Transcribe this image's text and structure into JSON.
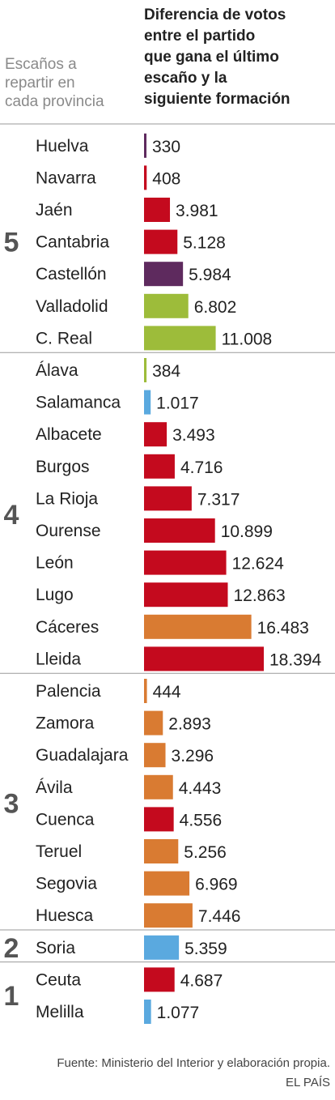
{
  "header": {
    "left_lines": [
      "Escaños a",
      "repartir en",
      "cada provincia"
    ],
    "right_lines": [
      "Diferencia de votos",
      "entre el partido",
      "que gana el último",
      "escaño y la",
      "siguiente formación"
    ]
  },
  "footer": {
    "source": "Fuente: Ministerio del Interior y elaboración propia.",
    "brand": "EL PAÍS"
  },
  "colors": {
    "red": "#c40a1e",
    "purple": "#5e2a5e",
    "green": "#9dbc3a",
    "blue": "#5aa9df",
    "orange": "#d97b32",
    "separator": "#9a9a9a",
    "group_number": "#555555"
  },
  "chart_data": {
    "type": "bar",
    "orientation": "horizontal",
    "groups": [
      {
        "seats": "5",
        "rows": [
          {
            "province": "Huelva",
            "value": 330,
            "label": "330",
            "color": "purple"
          },
          {
            "province": "Navarra",
            "value": 408,
            "label": "408",
            "color": "red"
          },
          {
            "province": "Jaén",
            "value": 3981,
            "label": "3.981",
            "color": "red"
          },
          {
            "province": "Cantabria",
            "value": 5128,
            "label": "5.128",
            "color": "red"
          },
          {
            "province": "Castellón",
            "value": 5984,
            "label": "5.984",
            "color": "purple"
          },
          {
            "province": "Valladolid",
            "value": 6802,
            "label": "6.802",
            "color": "green"
          },
          {
            "province": "C. Real",
            "value": 11008,
            "label": "11.008",
            "color": "green"
          }
        ]
      },
      {
        "seats": "4",
        "rows": [
          {
            "province": "Álava",
            "value": 384,
            "label": "384",
            "color": "green"
          },
          {
            "province": "Salamanca",
            "value": 1017,
            "label": "1.017",
            "color": "blue"
          },
          {
            "province": "Albacete",
            "value": 3493,
            "label": "3.493",
            "color": "red"
          },
          {
            "province": "Burgos",
            "value": 4716,
            "label": "4.716",
            "color": "red"
          },
          {
            "province": "La Rioja",
            "value": 7317,
            "label": "7.317",
            "color": "red"
          },
          {
            "province": "Ourense",
            "value": 10899,
            "label": "10.899",
            "color": "red"
          },
          {
            "province": "León",
            "value": 12624,
            "label": "12.624",
            "color": "red"
          },
          {
            "province": "Lugo",
            "value": 12863,
            "label": "12.863",
            "color": "red"
          },
          {
            "province": "Cáceres",
            "value": 16483,
            "label": "16.483",
            "color": "orange"
          },
          {
            "province": "Lleida",
            "value": 18394,
            "label": "18.394",
            "color": "red"
          }
        ]
      },
      {
        "seats": "3",
        "rows": [
          {
            "province": "Palencia",
            "value": 444,
            "label": "444",
            "color": "orange"
          },
          {
            "province": "Zamora",
            "value": 2893,
            "label": "2.893",
            "color": "orange"
          },
          {
            "province": "Guadalajara",
            "value": 3296,
            "label": "3.296",
            "color": "orange"
          },
          {
            "province": "Ávila",
            "value": 4443,
            "label": "4.443",
            "color": "orange"
          },
          {
            "province": "Cuenca",
            "value": 4556,
            "label": "4.556",
            "color": "red"
          },
          {
            "province": "Teruel",
            "value": 5256,
            "label": "5.256",
            "color": "orange"
          },
          {
            "province": "Segovia",
            "value": 6969,
            "label": "6.969",
            "color": "orange"
          },
          {
            "province": "Huesca",
            "value": 7446,
            "label": "7.446",
            "color": "orange"
          }
        ]
      },
      {
        "seats": "2",
        "rows": [
          {
            "province": "Soria",
            "value": 5359,
            "label": "5.359",
            "color": "blue"
          }
        ]
      },
      {
        "seats": "1",
        "rows": [
          {
            "province": "Ceuta",
            "value": 4687,
            "label": "4.687",
            "color": "red"
          },
          {
            "province": "Melilla",
            "value": 1077,
            "label": "1.077",
            "color": "blue"
          }
        ]
      }
    ]
  }
}
